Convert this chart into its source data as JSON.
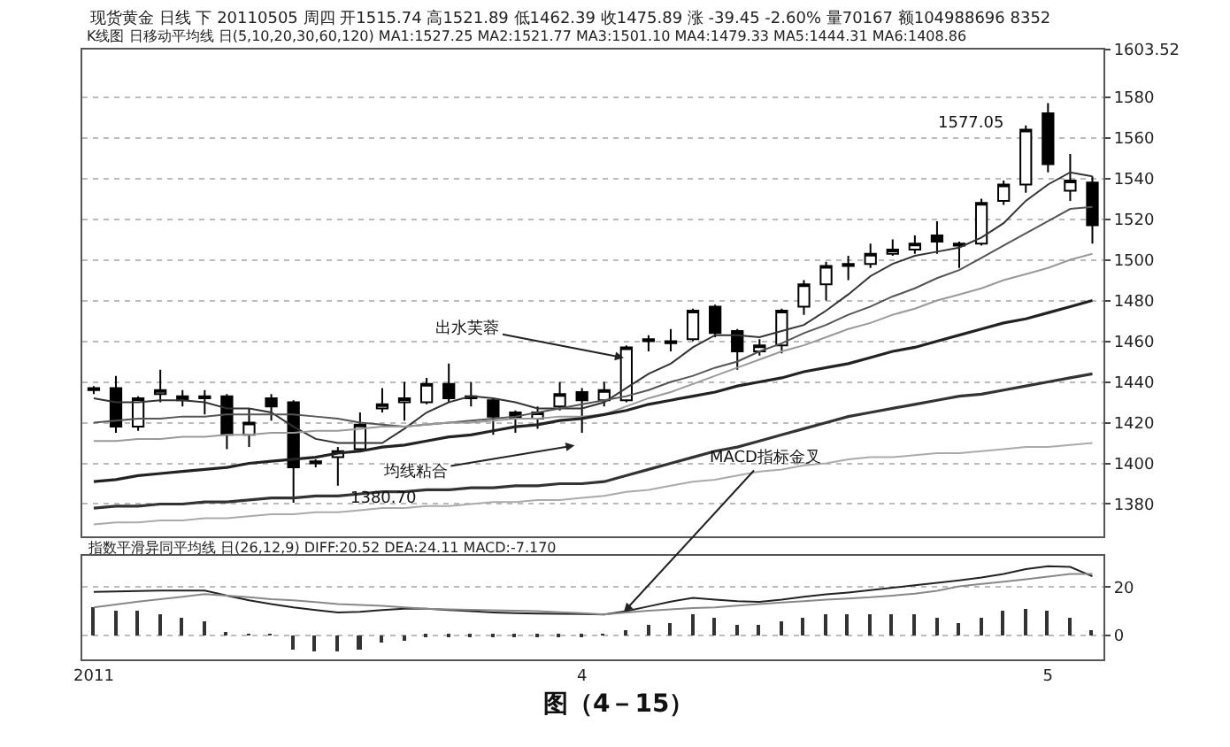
{
  "chart_data": [
    {
      "type": "candlestick",
      "title": "现货黄金 日线 下 20110505 周四 开1515.74 高1521.89 低1462.39 收1475.89 涨 -39.45 -2.60% 量70167 额104988696 8352",
      "subtitle": "K线图 日移动平均线 日(5,10,20,30,60,120) MA1:1527.25 MA2:1521.77 MA3:1501.10 MA4:1479.33 MA5:1444.31 MA6:1408.86",
      "categories": [
        null,
        null,
        null,
        null,
        null,
        null,
        null,
        null,
        null,
        null,
        null,
        null,
        null,
        null,
        null,
        null,
        null,
        null,
        null,
        null,
        null,
        null,
        null,
        null,
        null,
        null,
        null,
        null,
        null,
        null,
        null,
        null,
        null,
        null,
        null,
        null,
        null,
        null,
        null,
        null,
        null,
        null,
        null,
        null,
        null,
        null
      ],
      "ohlc": [
        [
          1436,
          1438,
          1434,
          1437
        ],
        [
          1437,
          1443,
          1415,
          1418
        ],
        [
          1418,
          1433,
          1416,
          1432
        ],
        [
          1434,
          1446,
          1430,
          1436
        ],
        [
          1433,
          1436,
          1428,
          1431
        ],
        [
          1432,
          1436,
          1424,
          1433
        ],
        [
          1433,
          1434,
          1407,
          1414
        ],
        [
          1414,
          1427,
          1408,
          1420
        ],
        [
          1432,
          1434,
          1421,
          1428
        ],
        [
          1430,
          1431,
          1380.7,
          1398
        ],
        [
          1400,
          1402,
          1398,
          1401
        ],
        [
          1403,
          1408,
          1389,
          1406
        ],
        [
          1407,
          1425,
          1406,
          1419
        ],
        [
          1427,
          1437,
          1425,
          1429
        ],
        [
          1430,
          1440,
          1421,
          1432
        ],
        [
          1430,
          1442,
          1429,
          1439
        ],
        [
          1439,
          1449,
          1430,
          1432
        ],
        [
          1432,
          1440,
          1428,
          1433
        ],
        [
          1431,
          1432,
          1414,
          1423
        ],
        [
          1425,
          1426,
          1415,
          1422
        ],
        [
          1422,
          1428,
          1417,
          1425
        ],
        [
          1428,
          1440,
          1426,
          1434
        ],
        [
          1435,
          1437,
          1415,
          1431
        ],
        [
          1431,
          1440,
          1428,
          1436
        ],
        [
          1431,
          1458,
          1430,
          1457
        ],
        [
          1460,
          1463,
          1455,
          1461
        ],
        [
          1459,
          1466,
          1455,
          1460
        ],
        [
          1461,
          1476,
          1460,
          1475
        ],
        [
          1477,
          1478,
          1462,
          1464
        ],
        [
          1465,
          1466,
          1446,
          1455
        ],
        [
          1455,
          1461,
          1453,
          1458
        ],
        [
          1458,
          1476,
          1454,
          1475
        ],
        [
          1477,
          1490,
          1473,
          1488
        ],
        [
          1488,
          1499,
          1480,
          1497
        ],
        [
          1497,
          1502,
          1490,
          1498
        ],
        [
          1498,
          1508,
          1496,
          1503
        ],
        [
          1503,
          1510,
          1502,
          1505
        ],
        [
          1505,
          1512,
          1503,
          1508
        ],
        [
          1512,
          1519,
          1503,
          1509
        ],
        [
          1507,
          1509,
          1496,
          1508
        ],
        [
          1508,
          1530,
          1507,
          1528
        ],
        [
          1529,
          1539,
          1527,
          1537
        ],
        [
          1537,
          1566,
          1533,
          1564
        ],
        [
          1572,
          1577.05,
          1543,
          1547
        ],
        [
          1534,
          1552,
          1529,
          1539
        ],
        [
          1538,
          1541,
          1508,
          1517
        ]
      ],
      "color": "#000000",
      "series": [
        {
          "type": "line",
          "color": "#333333",
          "values": [
            1432,
            1430,
            1430,
            1431,
            1431,
            1430,
            1427,
            1427,
            1425,
            1418,
            1412,
            1410,
            1410,
            1410,
            1417,
            1425,
            1430,
            1433,
            1432,
            1430,
            1427,
            1427,
            1427,
            1430,
            1437,
            1444,
            1449,
            1457,
            1463,
            1463,
            1462,
            1465,
            1468,
            1475,
            1483,
            1492,
            1498,
            1502,
            1504,
            1506,
            1511,
            1518,
            1529,
            1537,
            1543,
            1541
          ]
        },
        {
          "type": "line",
          "color": "#555555",
          "values": [
            1420,
            1421,
            1422,
            1422,
            1423,
            1423,
            1424,
            1424,
            1424,
            1424,
            1423,
            1422,
            1420,
            1419,
            1418,
            1419,
            1420,
            1421,
            1422,
            1423,
            1425,
            1427,
            1429,
            1431,
            1433,
            1436,
            1440,
            1443,
            1447,
            1450,
            1455,
            1459,
            1464,
            1468,
            1473,
            1477,
            1482,
            1486,
            1491,
            1495,
            1501,
            1507,
            1513,
            1519,
            1525,
            1526
          ]
        },
        {
          "type": "line",
          "color": "#999999",
          "values": [
            1411,
            1411,
            1412,
            1412,
            1413,
            1413,
            1414,
            1414,
            1415,
            1415,
            1416,
            1416,
            1417,
            1418,
            1418,
            1419,
            1420,
            1420,
            1421,
            1422,
            1422,
            1423,
            1423,
            1424,
            1428,
            1432,
            1435,
            1439,
            1443,
            1447,
            1451,
            1455,
            1458,
            1462,
            1466,
            1469,
            1473,
            1476,
            1480,
            1483,
            1486,
            1490,
            1493,
            1496,
            1500,
            1503
          ]
        },
        {
          "type": "line",
          "color": "#222222",
          "values": [
            1391,
            1392,
            1394,
            1395,
            1396,
            1397,
            1398,
            1400,
            1401,
            1402,
            1403,
            1405,
            1406,
            1408,
            1409,
            1411,
            1413,
            1414,
            1416,
            1418,
            1419,
            1421,
            1422,
            1424,
            1426,
            1429,
            1431,
            1433,
            1435,
            1438,
            1440,
            1442,
            1445,
            1447,
            1449,
            1452,
            1455,
            1457,
            1460,
            1463,
            1466,
            1469,
            1471,
            1474,
            1477,
            1480
          ]
        },
        {
          "type": "line",
          "color": "#333333",
          "values": [
            1378,
            1379,
            1379,
            1380,
            1380,
            1381,
            1381,
            1382,
            1383,
            1383,
            1384,
            1384,
            1385,
            1386,
            1386,
            1387,
            1387,
            1388,
            1388,
            1389,
            1389,
            1390,
            1390,
            1391,
            1394,
            1397,
            1400,
            1403,
            1406,
            1408,
            1411,
            1414,
            1417,
            1420,
            1423,
            1425,
            1427,
            1429,
            1431,
            1433,
            1434,
            1436,
            1438,
            1440,
            1442,
            1444
          ]
        },
        {
          "type": "line",
          "color": "#aaaaaa",
          "values": [
            1370,
            1371,
            1371,
            1372,
            1372,
            1373,
            1373,
            1374,
            1375,
            1375,
            1376,
            1376,
            1377,
            1378,
            1378,
            1379,
            1379,
            1380,
            1381,
            1381,
            1382,
            1382,
            1383,
            1384,
            1386,
            1387,
            1389,
            1391,
            1392,
            1394,
            1396,
            1397,
            1399,
            1400,
            1402,
            1403,
            1403,
            1404,
            1405,
            1405,
            1406,
            1407,
            1408,
            1408,
            1409,
            1410
          ]
        }
      ],
      "ylim": [
        1364,
        1603.52
      ],
      "yticks": [
        1380,
        1400,
        1420,
        1440,
        1460,
        1480,
        1500,
        1520,
        1540,
        1560,
        1580,
        {
          "value": 1603.52,
          "label": "1603.52"
        }
      ],
      "grid": "y",
      "tick_labels": "y",
      "annotations": [
        "出水芙蓉",
        "均线粘合",
        "MACD指标金叉",
        "1380.70",
        "1577.05"
      ]
    },
    {
      "type": "bar",
      "title": "指数平滑异同平均线 日(26,12,9) DIFF:20.52 DEA:24.11 MACD:-7.170",
      "categories": [
        "2011",
        null,
        null,
        null,
        null,
        null,
        null,
        null,
        null,
        null,
        null,
        null,
        null,
        null,
        null,
        null,
        null,
        null,
        null,
        null,
        null,
        null,
        "4",
        null,
        null,
        null,
        null,
        null,
        null,
        null,
        null,
        null,
        null,
        null,
        null,
        null,
        null,
        null,
        null,
        null,
        null,
        null,
        null,
        "5",
        null,
        null
      ],
      "series": [
        {
          "type": "bar",
          "color": "#333333",
          "values": [
            12,
            10.5,
            10,
            9,
            7,
            6,
            1,
            0.5,
            0.5,
            -6,
            -7,
            -7,
            -6,
            -3,
            -2,
            -1,
            -1,
            -1,
            -0.5,
            -0.5,
            -0.5,
            -0.5,
            -0.5,
            0.5,
            2,
            4,
            5,
            9,
            7,
            4,
            4,
            6,
            7,
            9,
            9,
            9,
            9,
            9,
            7,
            5,
            7,
            10,
            11,
            10,
            7,
            2
          ]
        },
        {
          "type": "line",
          "color": "#222222",
          "values": [
            18,
            18.2,
            18.4,
            18.6,
            18.6,
            18.6,
            16.5,
            14.5,
            13,
            11.6,
            10.5,
            9.5,
            9.8,
            10.5,
            11,
            11,
            10.5,
            10,
            9.5,
            9.2,
            9,
            8.9,
            8.8,
            8.7,
            10,
            12,
            14,
            15.5,
            14.8,
            14.2,
            13.9,
            14.8,
            16,
            17,
            17.8,
            18.8,
            19.8,
            20.8,
            21.8,
            22.8,
            24,
            25.5,
            27.5,
            28.7,
            28.4,
            24.5
          ]
        },
        {
          "type": "line",
          "color": "#888888",
          "values": [
            11.6,
            12.8,
            14,
            15,
            16,
            17.1,
            16.5,
            15.8,
            15,
            14.5,
            13.8,
            13,
            12.6,
            12.2,
            11.6,
            11,
            10.8,
            10.6,
            10.4,
            10.2,
            10,
            9.6,
            9.2,
            8.7,
            9.5,
            10.2,
            10.8,
            11.3,
            11.6,
            12.3,
            13,
            13.6,
            14.2,
            14.8,
            15.3,
            15.8,
            16.5,
            17.3,
            18.5,
            20.3,
            21.3,
            22.3,
            23.3,
            24.4,
            25.5,
            25.5
          ]
        }
      ],
      "ylim": [
        -10,
        33
      ],
      "yticks": [
        0,
        20
      ],
      "grid": "y",
      "annotations": [
        "图（4－15）"
      ]
    }
  ]
}
